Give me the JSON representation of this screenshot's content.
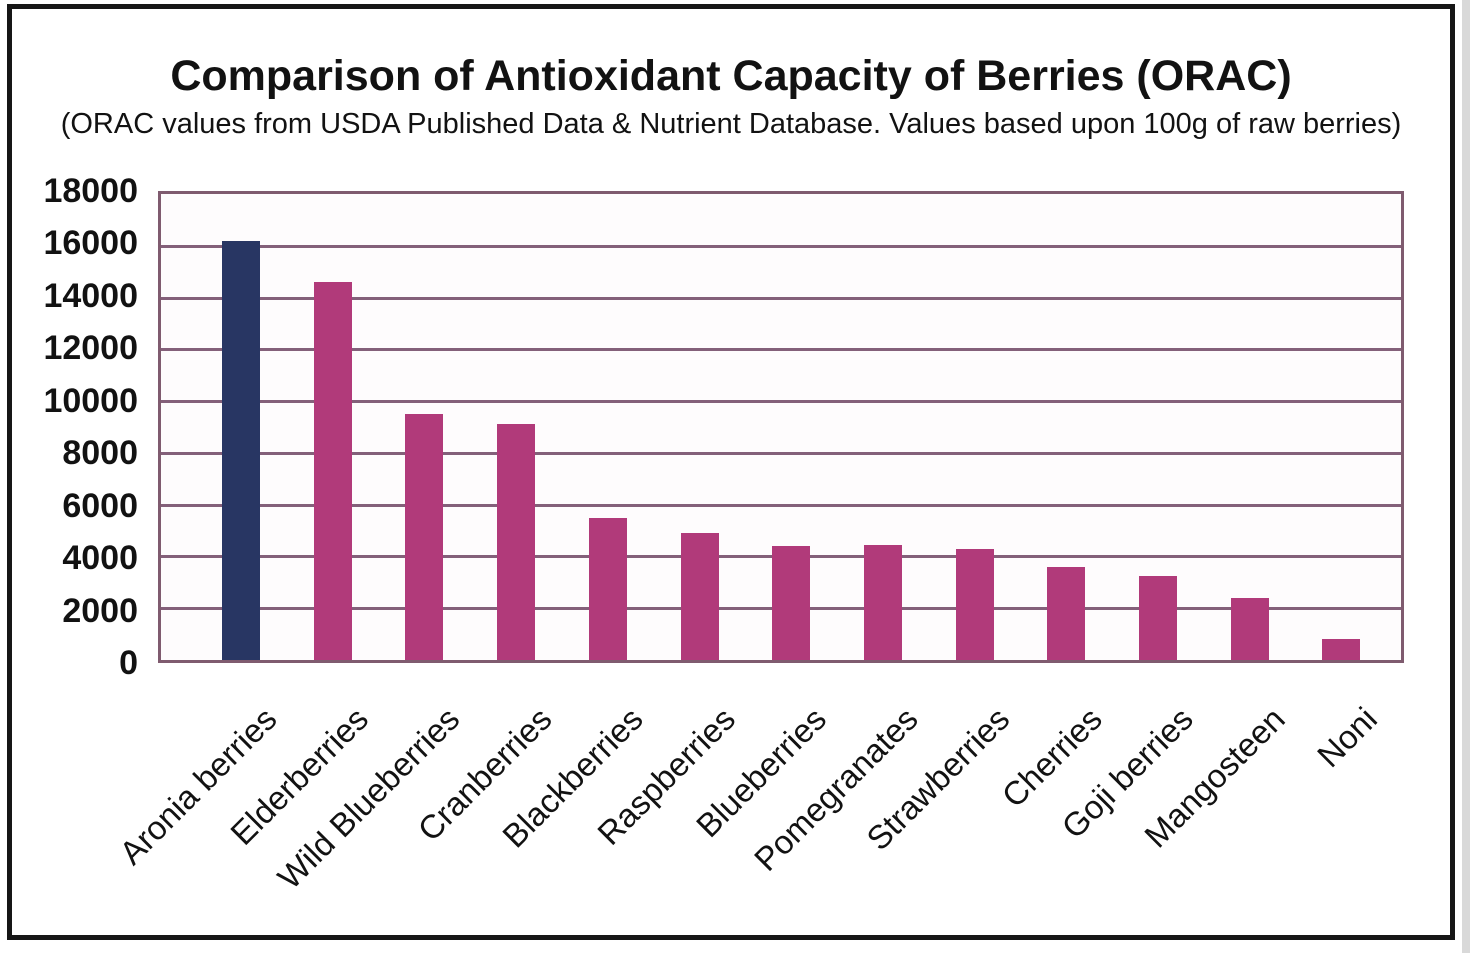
{
  "chart_data": {
    "type": "bar",
    "title": "Comparison of Antioxidant Capacity of Berries (ORAC)",
    "subtitle": "(ORAC values from USDA Published Data & Nutrient Database. Values based upon 100g of raw berries)",
    "categories": [
      "Aronia berries",
      "Elderberries",
      "Wild Blueberries",
      "Cranberries",
      "Blackberries",
      "Raspberries",
      "Blueberries",
      "Pomegranates",
      "Strawberries",
      "Cherries",
      "Goji berries",
      "Mangosteen",
      "Noni"
    ],
    "values": [
      16200,
      14600,
      9500,
      9100,
      5500,
      4900,
      4400,
      4450,
      4300,
      3600,
      3250,
      2400,
      800
    ],
    "bar_colors": [
      "#283663",
      "#b13a7a",
      "#b13a7a",
      "#b13a7a",
      "#b13a7a",
      "#b13a7a",
      "#b13a7a",
      "#b13a7a",
      "#b13a7a",
      "#b13a7a",
      "#b13a7a",
      "#b13a7a",
      "#b13a7a"
    ],
    "xlabel": "",
    "ylabel": "",
    "ylim": [
      0,
      18000
    ],
    "yticks": [
      0,
      2000,
      4000,
      6000,
      8000,
      10000,
      12000,
      14000,
      16000,
      18000
    ],
    "grid": "horizontal gridlines every 2000, plus minor band look",
    "legend": "none",
    "colors": {
      "highlight_bar": "#283663",
      "series_bar": "#b13a7a",
      "gridline": "#84607a",
      "plot_border": "#7f5b6f",
      "outer_frame": "#161616",
      "text": "#121212",
      "plot_background": "#fefcfd"
    }
  }
}
